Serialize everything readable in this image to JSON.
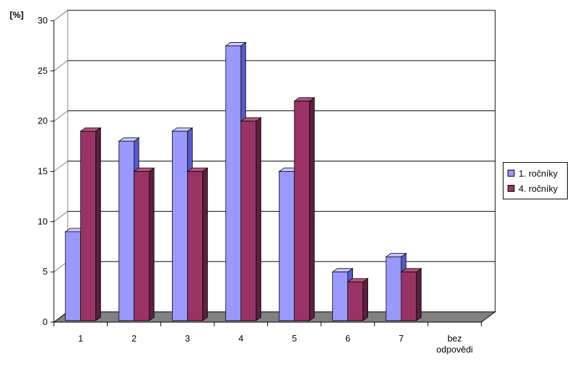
{
  "chart_data": {
    "type": "bar",
    "title": "",
    "ylabel": "[%]",
    "xlabel": "",
    "categories": [
      "1",
      "2",
      "3",
      "4",
      "5",
      "6",
      "7",
      "bez odpovědi"
    ],
    "category_lines": [
      [
        "1"
      ],
      [
        "2"
      ],
      [
        "3"
      ],
      [
        "4"
      ],
      [
        "5"
      ],
      [
        "6"
      ],
      [
        "7"
      ],
      [
        "bez",
        "odpovědi"
      ]
    ],
    "ylim": [
      0,
      30
    ],
    "yticks": [
      0,
      5,
      10,
      15,
      20,
      25,
      30
    ],
    "grid": true,
    "legend_position": "right",
    "series": [
      {
        "name": "1. ročníky",
        "color": "#9999ff",
        "side": "#5a5acc",
        "top": "#c8c8ff",
        "values": [
          9,
          18,
          19,
          27.5,
          15,
          5,
          6.5,
          0
        ]
      },
      {
        "name": "4. ročníky",
        "color": "#993366",
        "side": "#5e1f3e",
        "top": "#b35580",
        "values": [
          19,
          15,
          15,
          20,
          22,
          4,
          5,
          0
        ]
      }
    ]
  }
}
